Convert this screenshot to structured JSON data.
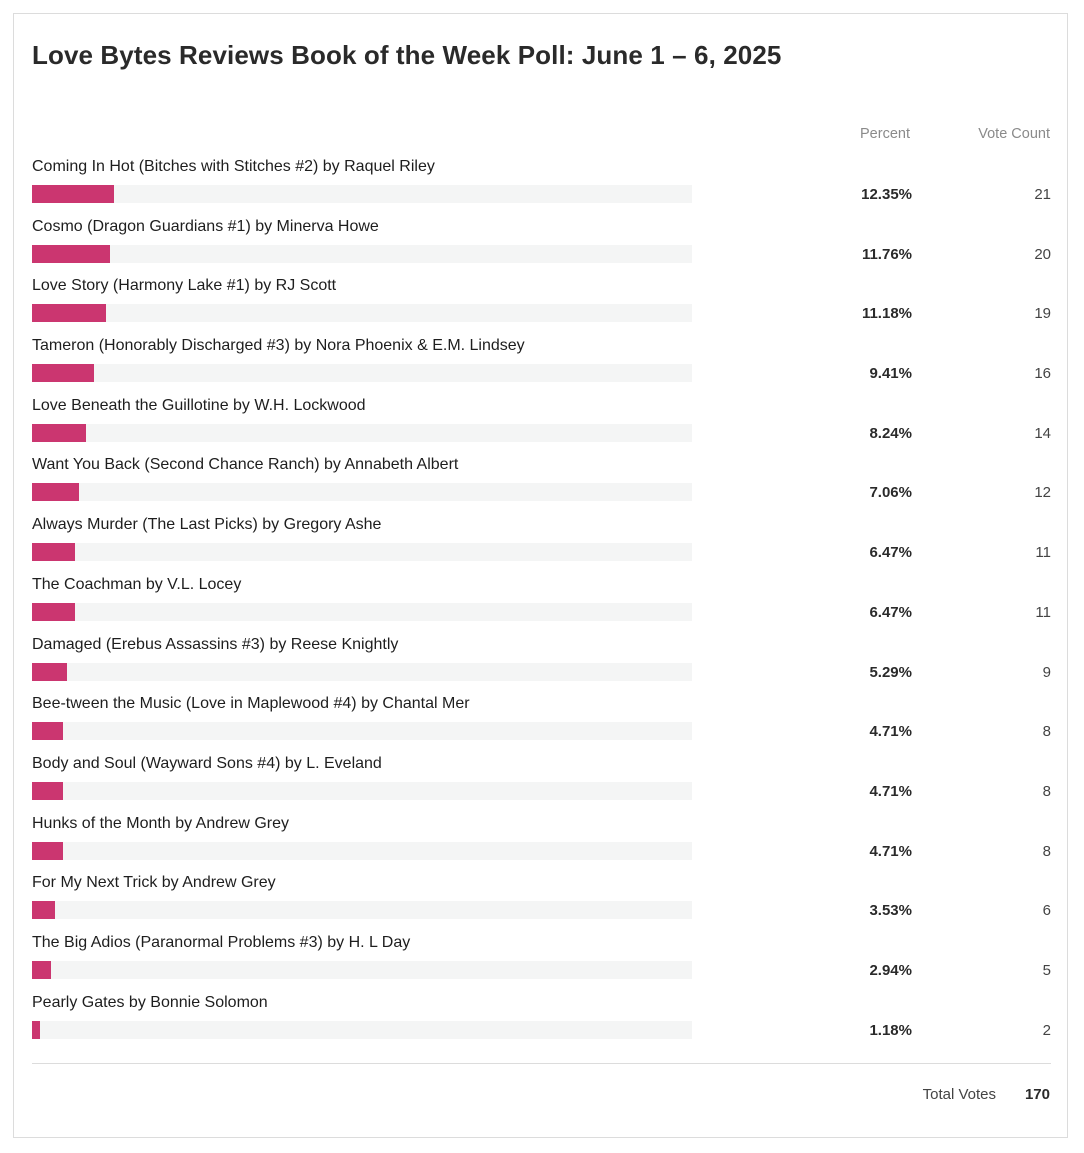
{
  "poll": {
    "title": "Love Bytes Reviews Book of the Week Poll: June 1 – 6, 2025",
    "percent_header": "Percent",
    "votes_header": "Vote Count",
    "total_label": "Total Votes",
    "total_value": "170"
  },
  "colors": {
    "bar": "#cb3670",
    "track": "#f4f5f5"
  },
  "chart_data": {
    "type": "bar",
    "title": "Love Bytes Reviews Book of the Week Poll: June 1 – 6, 2025",
    "categories": [
      "Coming In Hot (Bitches with Stitches #2) by Raquel Riley",
      "Cosmo (Dragon Guardians #1) by Minerva Howe",
      "Love Story (Harmony Lake #1) by RJ Scott",
      "Tameron (Honorably Discharged #3) by Nora Phoenix & E.M. Lindsey",
      "Love Beneath the Guillotine by W.H. Lockwood",
      "Want You Back (Second Chance Ranch) by Annabeth Albert",
      "Always Murder (The Last Picks) by Gregory Ashe",
      "The Coachman by V.L. Locey",
      "Damaged (Erebus Assassins #3) by Reese Knightly",
      "Bee-tween the Music (Love in Maplewood #4) by Chantal Mer",
      "Body and Soul (Wayward Sons #4) by L. Eveland",
      "Hunks of the Month by Andrew Grey",
      "For My Next Trick by Andrew Grey",
      "The Big Adios (Paranormal Problems #3) by H. L Day",
      "Pearly Gates by Bonnie Solomon"
    ],
    "percent_labels": [
      "12.35%",
      "11.76%",
      "11.18%",
      "9.41%",
      "8.24%",
      "7.06%",
      "6.47%",
      "6.47%",
      "5.29%",
      "4.71%",
      "4.71%",
      "4.71%",
      "3.53%",
      "2.94%",
      "1.18%"
    ],
    "vote_counts": [
      "21",
      "20",
      "19",
      "16",
      "14",
      "12",
      "11",
      "11",
      "9",
      "8",
      "8",
      "8",
      "6",
      "5",
      "2"
    ],
    "percent_values": [
      12.35,
      11.76,
      11.18,
      9.41,
      8.24,
      7.06,
      6.47,
      6.47,
      5.29,
      4.71,
      4.71,
      4.71,
      3.53,
      2.94,
      1.18
    ],
    "xlim": [
      0,
      100
    ],
    "grid": false,
    "legend": "none"
  }
}
